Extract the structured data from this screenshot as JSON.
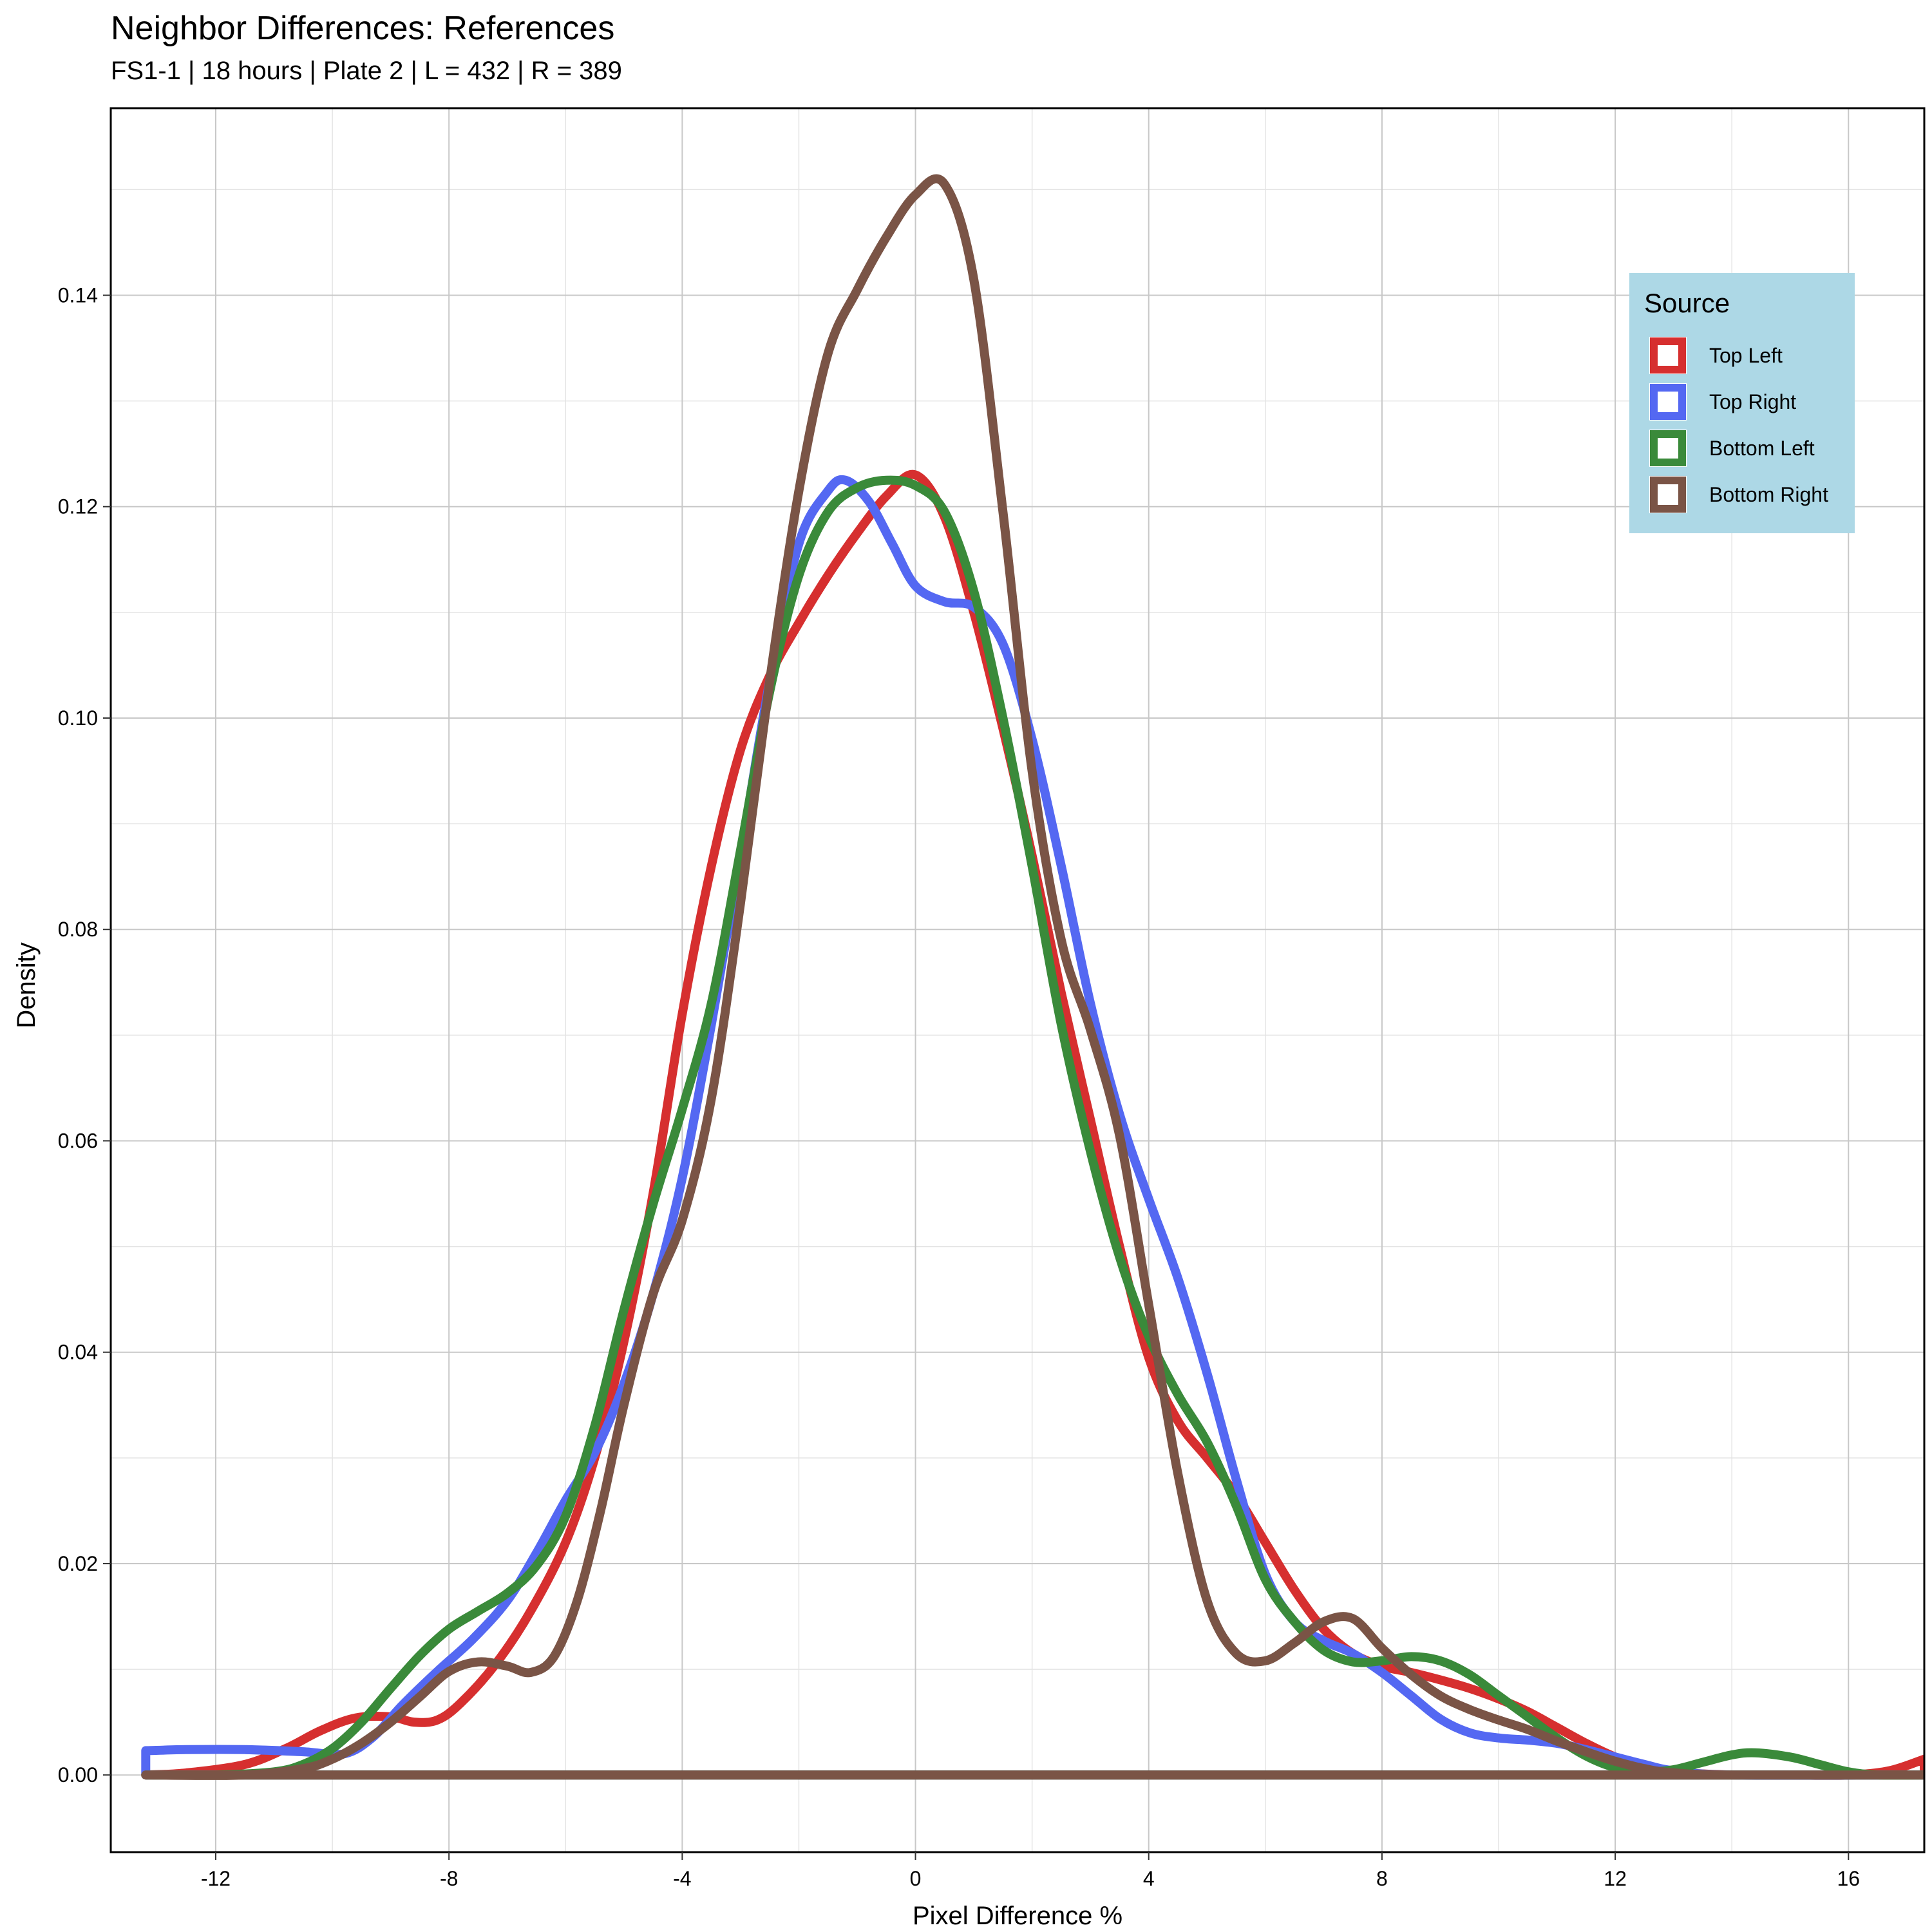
{
  "chart_data": {
    "type": "line",
    "title": "Neighbor Differences: References",
    "subtitle": "FS1-1 | 18 hours | Plate 2 | L = 432 | R = 389",
    "xlabel": "Pixel Difference %",
    "ylabel": "Density",
    "xlim": [
      -13.8,
      17.3
    ],
    "ylim": [
      -0.0073,
      0.1577
    ],
    "x_ticks": [
      -12,
      -8,
      -4,
      0,
      4,
      8,
      12,
      16
    ],
    "x_tick_labels": [
      "-12",
      "-8",
      "-4",
      "0",
      "4",
      "8",
      "12",
      "16"
    ],
    "y_ticks": [
      0.0,
      0.02,
      0.04,
      0.06,
      0.08,
      0.1,
      0.12,
      0.14
    ],
    "y_tick_labels": [
      "0.00",
      "0.02",
      "0.04",
      "0.06",
      "0.08",
      "0.10",
      "0.12",
      "0.14"
    ],
    "grid": true,
    "legend": {
      "title": "Source",
      "position": "top-right",
      "background": "#add8e6"
    },
    "series": [
      {
        "name": "Top Left",
        "color": "#d62f2f",
        "points": [
          [
            -13.2,
            0.0
          ],
          [
            -12.5,
            0.0002
          ],
          [
            -11.5,
            0.001
          ],
          [
            -10.8,
            0.0025
          ],
          [
            -10.2,
            0.0042
          ],
          [
            -9.6,
            0.0054
          ],
          [
            -9.0,
            0.0055
          ],
          [
            -8.6,
            0.005
          ],
          [
            -8.2,
            0.0052
          ],
          [
            -7.8,
            0.0068
          ],
          [
            -7.2,
            0.0105
          ],
          [
            -6.6,
            0.0155
          ],
          [
            -6.0,
            0.022
          ],
          [
            -5.5,
            0.03
          ],
          [
            -5.0,
            0.041
          ],
          [
            -4.5,
            0.055
          ],
          [
            -4.0,
            0.072
          ],
          [
            -3.5,
            0.086
          ],
          [
            -3.0,
            0.097
          ],
          [
            -2.5,
            0.104
          ],
          [
            -2.0,
            0.109
          ],
          [
            -1.5,
            0.1135
          ],
          [
            -1.0,
            0.1175
          ],
          [
            -0.5,
            0.121
          ],
          [
            0.0,
            0.123
          ],
          [
            0.5,
            0.119
          ],
          [
            1.0,
            0.11
          ],
          [
            1.5,
            0.099
          ],
          [
            2.0,
            0.087
          ],
          [
            2.5,
            0.074
          ],
          [
            3.0,
            0.062
          ],
          [
            3.5,
            0.05
          ],
          [
            4.0,
            0.0395
          ],
          [
            4.5,
            0.0335
          ],
          [
            5.0,
            0.03
          ],
          [
            5.5,
            0.0265
          ],
          [
            6.0,
            0.022
          ],
          [
            6.5,
            0.0175
          ],
          [
            7.0,
            0.0138
          ],
          [
            7.5,
            0.0115
          ],
          [
            8.0,
            0.0103
          ],
          [
            8.5,
            0.0097
          ],
          [
            9.0,
            0.009
          ],
          [
            9.5,
            0.0082
          ],
          [
            10.0,
            0.0072
          ],
          [
            10.5,
            0.006
          ],
          [
            11.0,
            0.0045
          ],
          [
            11.5,
            0.003
          ],
          [
            12.0,
            0.0017
          ],
          [
            12.5,
            0.0008
          ],
          [
            13.0,
            0.0003
          ],
          [
            14.0,
            0.0
          ],
          [
            15.0,
            0.0
          ],
          [
            16.0,
            0.0
          ],
          [
            16.7,
            0.0004
          ],
          [
            17.3,
            0.0015
          ]
        ]
      },
      {
        "name": "Top Right",
        "color": "#5468f2",
        "points": [
          [
            -13.2,
            0.0023
          ],
          [
            -12.5,
            0.0024
          ],
          [
            -11.5,
            0.0024
          ],
          [
            -10.5,
            0.0022
          ],
          [
            -9.8,
            0.002
          ],
          [
            -9.3,
            0.0036
          ],
          [
            -8.8,
            0.0066
          ],
          [
            -8.2,
            0.0098
          ],
          [
            -7.6,
            0.0128
          ],
          [
            -7.0,
            0.0165
          ],
          [
            -6.5,
            0.021
          ],
          [
            -6.0,
            0.026
          ],
          [
            -5.5,
            0.0305
          ],
          [
            -5.0,
            0.037
          ],
          [
            -4.5,
            0.0455
          ],
          [
            -4.0,
            0.0565
          ],
          [
            -3.5,
            0.071
          ],
          [
            -3.0,
            0.087
          ],
          [
            -2.5,
            0.1035
          ],
          [
            -2.0,
            0.1165
          ],
          [
            -1.5,
            0.1215
          ],
          [
            -1.2,
            0.1225
          ],
          [
            -0.8,
            0.1205
          ],
          [
            -0.4,
            0.1165
          ],
          [
            0.0,
            0.1125
          ],
          [
            0.5,
            0.111
          ],
          [
            1.0,
            0.1105
          ],
          [
            1.5,
            0.107
          ],
          [
            2.0,
            0.098
          ],
          [
            2.5,
            0.086
          ],
          [
            3.0,
            0.073
          ],
          [
            3.5,
            0.0625
          ],
          [
            4.0,
            0.0545
          ],
          [
            4.5,
            0.047
          ],
          [
            5.0,
            0.038
          ],
          [
            5.5,
            0.028
          ],
          [
            6.0,
            0.019
          ],
          [
            6.5,
            0.0145
          ],
          [
            7.0,
            0.0127
          ],
          [
            7.5,
            0.0115
          ],
          [
            8.0,
            0.0097
          ],
          [
            8.5,
            0.0075
          ],
          [
            9.0,
            0.0053
          ],
          [
            9.5,
            0.004
          ],
          [
            10.0,
            0.0035
          ],
          [
            10.5,
            0.0033
          ],
          [
            11.0,
            0.003
          ],
          [
            11.5,
            0.0024
          ],
          [
            12.0,
            0.0017
          ],
          [
            12.5,
            0.001
          ],
          [
            13.0,
            0.0004
          ],
          [
            14.0,
            0.0
          ],
          [
            17.3,
            0.0
          ]
        ]
      },
      {
        "name": "Bottom Left",
        "color": "#3a8a3a",
        "points": [
          [
            -13.2,
            0.0
          ],
          [
            -12.0,
            0.0
          ],
          [
            -11.0,
            0.0003
          ],
          [
            -10.5,
            0.001
          ],
          [
            -10.0,
            0.0025
          ],
          [
            -9.5,
            0.005
          ],
          [
            -9.0,
            0.0082
          ],
          [
            -8.5,
            0.0113
          ],
          [
            -8.0,
            0.0138
          ],
          [
            -7.5,
            0.0155
          ],
          [
            -7.0,
            0.0172
          ],
          [
            -6.5,
            0.0198
          ],
          [
            -6.0,
            0.0245
          ],
          [
            -5.5,
            0.033
          ],
          [
            -5.0,
            0.044
          ],
          [
            -4.5,
            0.054
          ],
          [
            -4.0,
            0.063
          ],
          [
            -3.5,
            0.073
          ],
          [
            -3.0,
            0.0875
          ],
          [
            -2.5,
            0.1025
          ],
          [
            -2.0,
            0.1135
          ],
          [
            -1.5,
            0.1195
          ],
          [
            -1.0,
            0.1218
          ],
          [
            -0.5,
            0.1225
          ],
          [
            0.0,
            0.122
          ],
          [
            0.5,
            0.1195
          ],
          [
            1.0,
            0.112
          ],
          [
            1.5,
            0.1
          ],
          [
            2.0,
            0.086
          ],
          [
            2.5,
            0.071
          ],
          [
            3.0,
            0.059
          ],
          [
            3.5,
            0.049
          ],
          [
            4.0,
            0.0415
          ],
          [
            4.5,
            0.036
          ],
          [
            5.0,
            0.0315
          ],
          [
            5.5,
            0.0255
          ],
          [
            6.0,
            0.0185
          ],
          [
            6.5,
            0.0145
          ],
          [
            7.0,
            0.0118
          ],
          [
            7.5,
            0.0107
          ],
          [
            8.0,
            0.0108
          ],
          [
            8.5,
            0.0112
          ],
          [
            9.0,
            0.0108
          ],
          [
            9.5,
            0.0095
          ],
          [
            10.0,
            0.0075
          ],
          [
            10.5,
            0.0055
          ],
          [
            11.0,
            0.0035
          ],
          [
            11.5,
            0.0018
          ],
          [
            12.0,
            0.0007
          ],
          [
            12.5,
            0.0003
          ],
          [
            13.0,
            0.0005
          ],
          [
            13.5,
            0.0012
          ],
          [
            14.0,
            0.0019
          ],
          [
            14.4,
            0.0021
          ],
          [
            15.0,
            0.0017
          ],
          [
            15.5,
            0.001
          ],
          [
            16.0,
            0.0003
          ],
          [
            16.5,
            0.0
          ],
          [
            17.3,
            0.0
          ]
        ]
      },
      {
        "name": "Bottom Right",
        "color": "#7a5446",
        "points": [
          [
            -13.2,
            0.0
          ],
          [
            -11.5,
            0.0
          ],
          [
            -10.5,
            0.0006
          ],
          [
            -10.0,
            0.0015
          ],
          [
            -9.5,
            0.003
          ],
          [
            -9.0,
            0.005
          ],
          [
            -8.5,
            0.0074
          ],
          [
            -8.0,
            0.0098
          ],
          [
            -7.5,
            0.0107
          ],
          [
            -7.0,
            0.0103
          ],
          [
            -6.6,
            0.0097
          ],
          [
            -6.2,
            0.0112
          ],
          [
            -5.8,
            0.0165
          ],
          [
            -5.4,
            0.025
          ],
          [
            -5.0,
            0.035
          ],
          [
            -4.5,
            0.0455
          ],
          [
            -4.0,
            0.0525
          ],
          [
            -3.5,
            0.064
          ],
          [
            -3.0,
            0.0825
          ],
          [
            -2.5,
            0.1035
          ],
          [
            -2.0,
            0.1215
          ],
          [
            -1.5,
            0.1345
          ],
          [
            -1.0,
            0.1405
          ],
          [
            -0.5,
            0.1455
          ],
          [
            0.0,
            0.1495
          ],
          [
            0.5,
            0.1505
          ],
          [
            1.0,
            0.1415
          ],
          [
            1.5,
            0.1195
          ],
          [
            2.0,
            0.095
          ],
          [
            2.5,
            0.079
          ],
          [
            3.0,
            0.0705
          ],
          [
            3.5,
            0.0605
          ],
          [
            4.0,
            0.0445
          ],
          [
            4.5,
            0.0285
          ],
          [
            5.0,
            0.0165
          ],
          [
            5.5,
            0.0115
          ],
          [
            6.0,
            0.0108
          ],
          [
            6.5,
            0.0125
          ],
          [
            7.0,
            0.0145
          ],
          [
            7.5,
            0.0148
          ],
          [
            8.0,
            0.012
          ],
          [
            8.5,
            0.0095
          ],
          [
            9.0,
            0.0075
          ],
          [
            9.5,
            0.0062
          ],
          [
            10.0,
            0.0052
          ],
          [
            10.5,
            0.0043
          ],
          [
            11.0,
            0.0032
          ],
          [
            11.5,
            0.0022
          ],
          [
            12.0,
            0.0013
          ],
          [
            12.5,
            0.0006
          ],
          [
            13.0,
            0.0002
          ],
          [
            14.0,
            0.0
          ],
          [
            17.3,
            0.0
          ]
        ]
      }
    ]
  }
}
